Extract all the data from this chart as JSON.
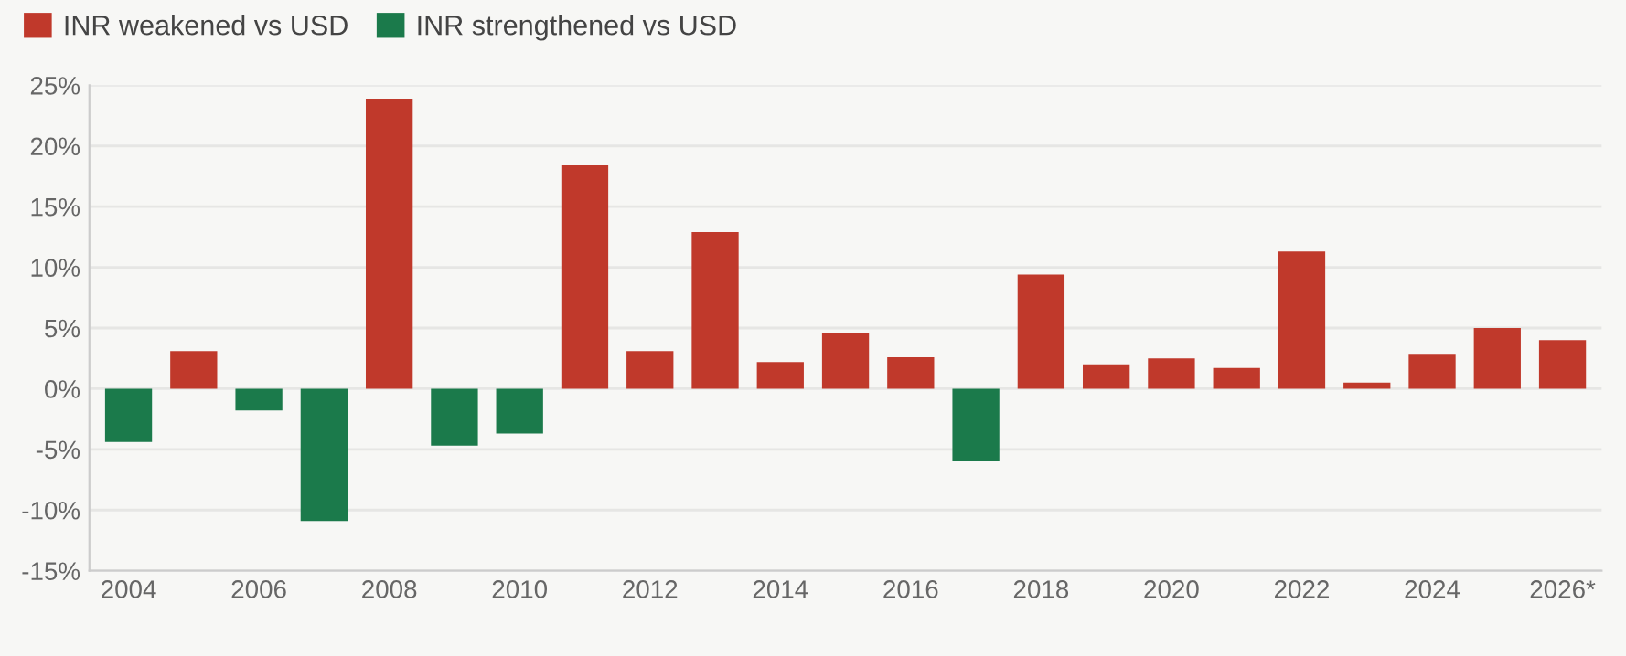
{
  "chart_data": {
    "type": "bar",
    "categories": [
      "2004",
      null,
      "2006",
      null,
      "2008",
      null,
      "2010",
      null,
      "2012",
      null,
      "2014",
      null,
      "2016",
      null,
      "2018",
      null,
      "2020",
      null,
      "2022",
      null,
      "2024",
      null,
      "2026*"
    ],
    "series": [
      {
        "name": "INR weakened vs USD",
        "color": "#c0392b",
        "values": [
          null,
          3.1,
          null,
          null,
          23.9,
          null,
          null,
          18.4,
          3.1,
          12.9,
          2.2,
          4.6,
          2.6,
          null,
          9.4,
          2.0,
          2.5,
          1.7,
          11.3,
          0.5,
          2.8,
          5.0,
          4.0
        ]
      },
      {
        "name": "INR strengthened vs USD",
        "color": "#1b7a4b",
        "values": [
          -4.4,
          null,
          -1.8,
          -10.9,
          null,
          -4.7,
          -3.7,
          null,
          null,
          null,
          null,
          null,
          null,
          -6.0,
          null,
          null,
          null,
          null,
          null,
          null,
          null,
          null,
          null
        ]
      }
    ],
    "stacked": true,
    "ylim": [
      -15,
      25
    ],
    "yticks": [
      {
        "value": -15,
        "label": "-15%"
      },
      {
        "value": -10,
        "label": "-10%"
      },
      {
        "value": -5,
        "label": "-5%"
      },
      {
        "value": 0,
        "label": "0%"
      },
      {
        "value": 5,
        "label": "5%"
      },
      {
        "value": 10,
        "label": "10%"
      },
      {
        "value": 15,
        "label": "15%"
      },
      {
        "value": 20,
        "label": "20%"
      },
      {
        "value": 25,
        "label": "25%"
      }
    ],
    "grid": "y",
    "legend": "top left"
  }
}
